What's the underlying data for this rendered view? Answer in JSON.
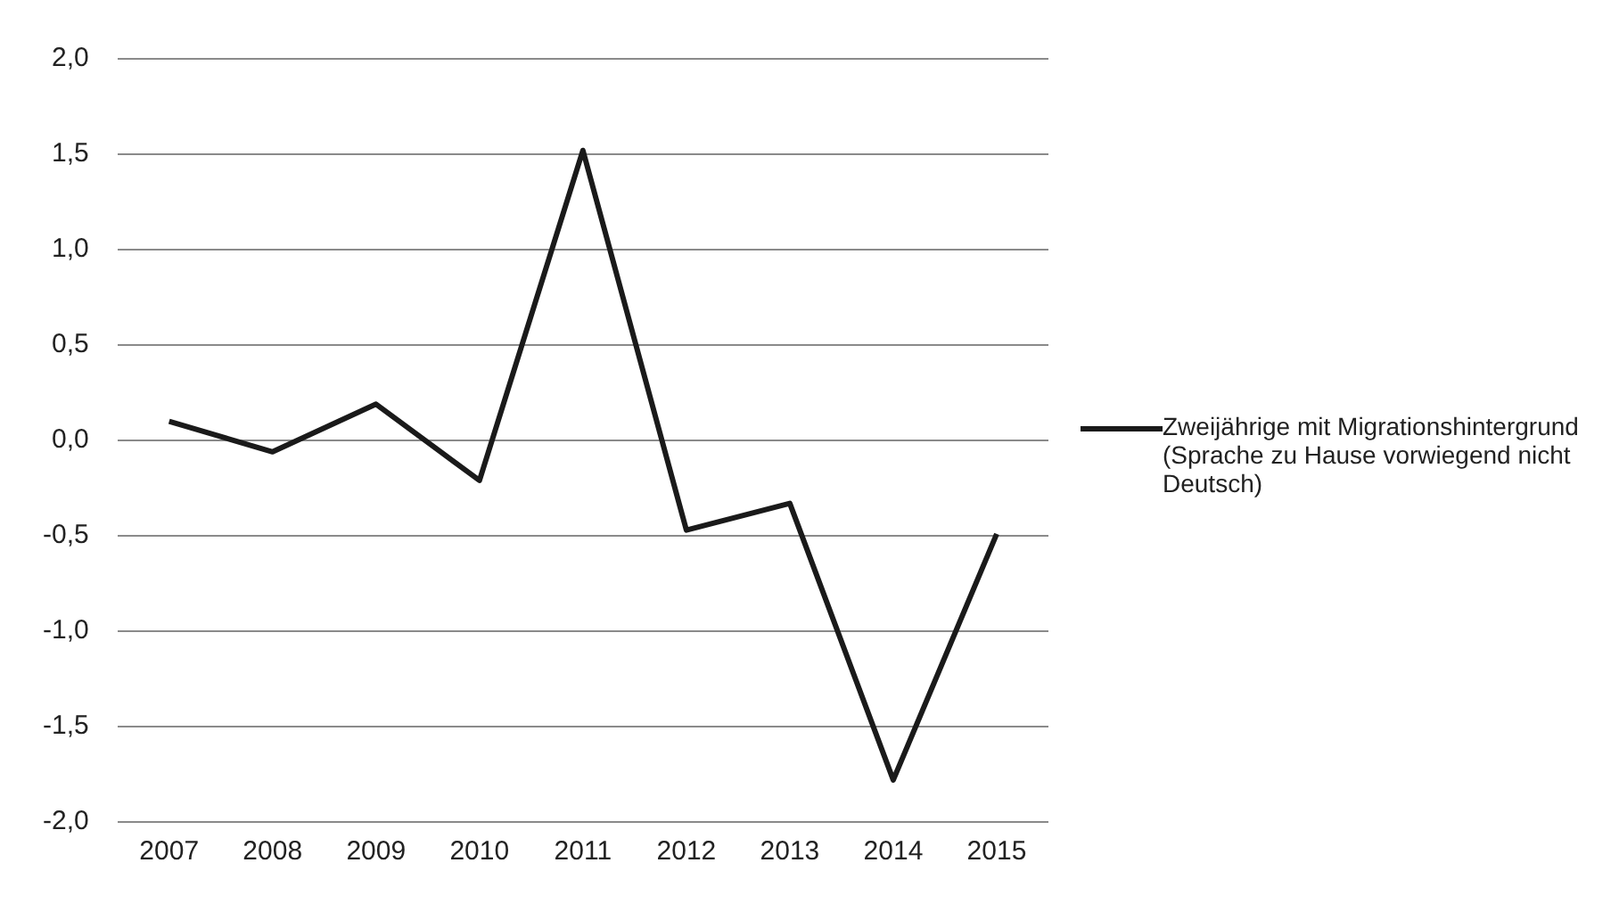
{
  "chart_data": {
    "type": "line",
    "categories": [
      "2007",
      "2008",
      "2009",
      "2010",
      "2011",
      "2012",
      "2013",
      "2014",
      "2015"
    ],
    "series": [
      {
        "name": "Zweijährige mit Migrationshintergrund (Sprache zu Hause vorwiegend nicht Deutsch)",
        "color": "#1a1a1a",
        "values": [
          0.1,
          -0.06,
          0.19,
          -0.21,
          1.52,
          -0.47,
          -0.33,
          -1.78,
          -0.49
        ]
      }
    ],
    "ylim": [
      -2,
      2
    ],
    "yticks": [
      {
        "value": -2,
        "label": "-2,0"
      },
      {
        "value": -1.5,
        "label": "-1,5"
      },
      {
        "value": -1,
        "label": "-1,0"
      },
      {
        "value": -0.5,
        "label": "-0,5"
      },
      {
        "value": 0,
        "label": "0,0"
      },
      {
        "value": 0.5,
        "label": "0,5"
      },
      {
        "value": 1,
        "label": "1,0"
      },
      {
        "value": 1.5,
        "label": "1,5"
      },
      {
        "value": 2,
        "label": "2,0"
      }
    ],
    "grid": "y",
    "legend": "right",
    "marker": "none",
    "line_style": "solid"
  }
}
